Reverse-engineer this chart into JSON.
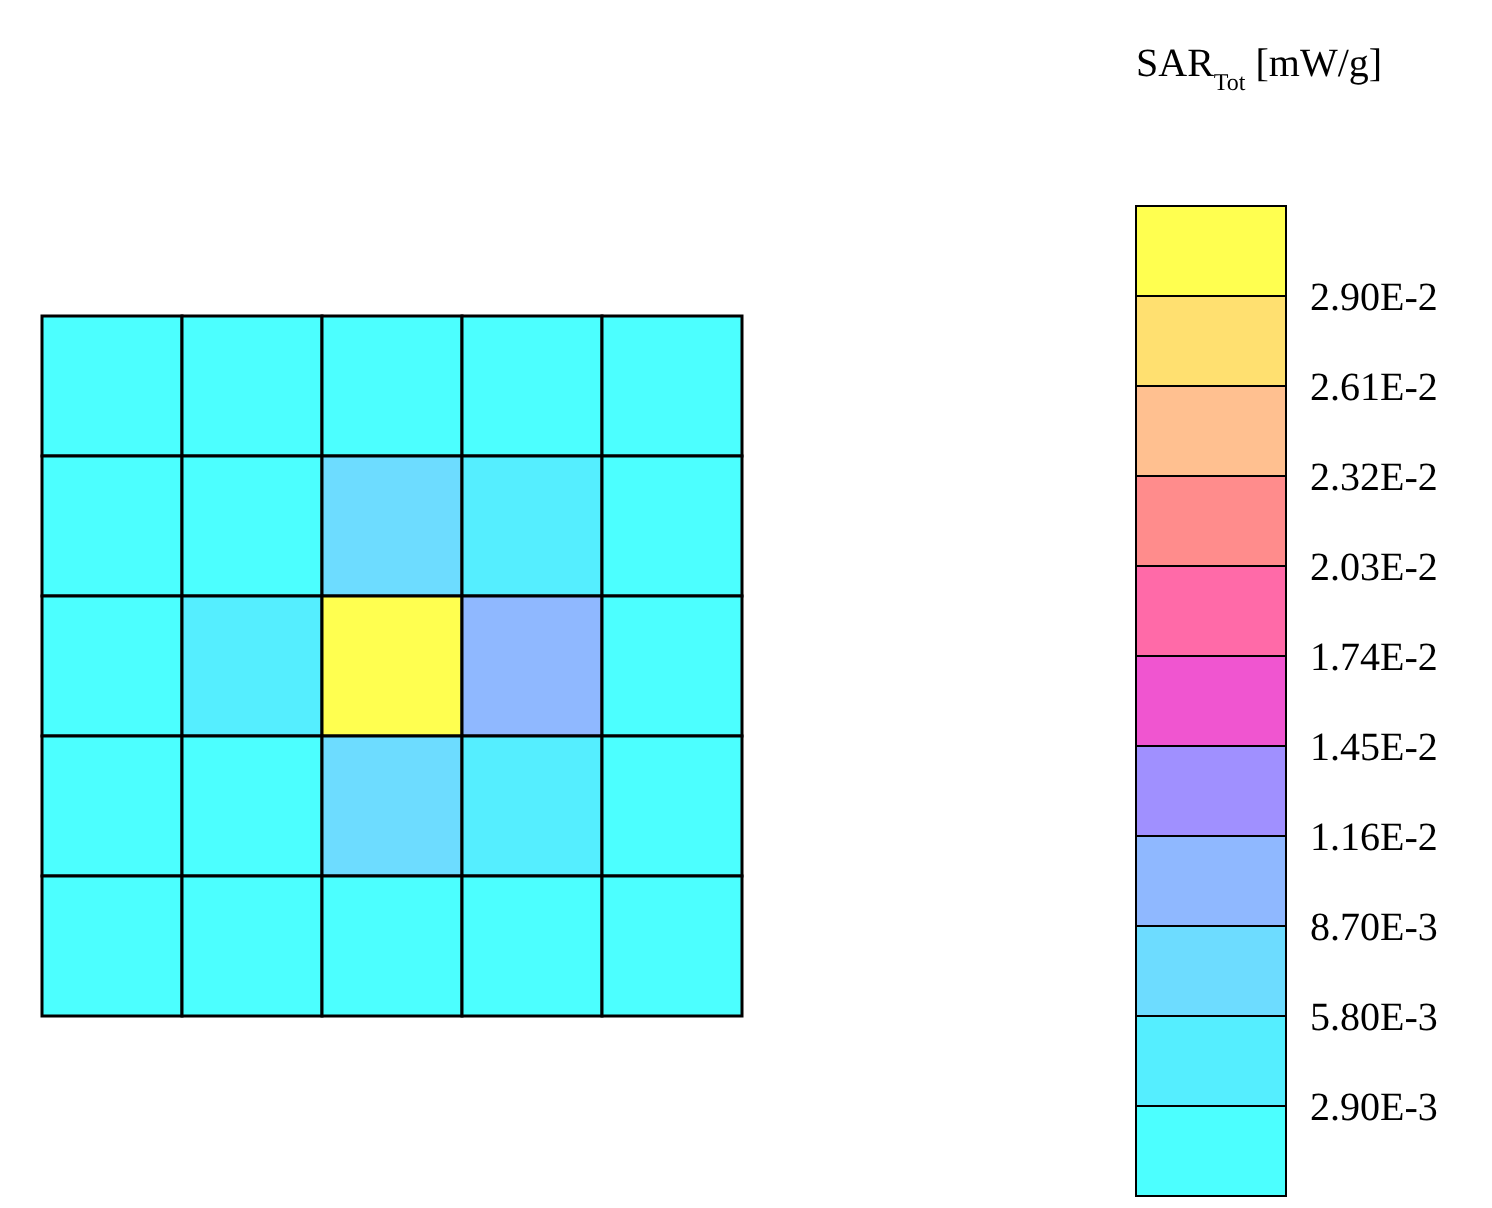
{
  "chart_data": {
    "type": "heatmap",
    "clabel": "SAR$_{Tot}$ [mW/g]",
    "categories": [
      null,
      null,
      null,
      null,
      null
    ],
    "y_categories": [
      null,
      null,
      null,
      null,
      null
    ],
    "cells": [
      [
        0.001,
        0.0012,
        0.0028,
        0.0012,
        0.001
      ],
      [
        0.0012,
        0.0025,
        0.007,
        0.003,
        0.0012
      ],
      [
        0.0015,
        0.005,
        0.03,
        0.011,
        0.002
      ],
      [
        0.0012,
        0.0025,
        0.007,
        0.0035,
        0.0012
      ],
      [
        0.001,
        0.0012,
        0.0028,
        0.0012,
        0.001
      ]
    ],
    "clim": [
      0,
      0.0319
    ],
    "cticks": [
      {
        "value": 0.0029,
        "label": "2.90E-3"
      },
      {
        "value": 0.0058,
        "label": "5.80E-3"
      },
      {
        "value": 0.0087,
        "label": "8.70E-3"
      },
      {
        "value": 0.0116,
        "label": "1.16E-2"
      },
      {
        "value": 0.0145,
        "label": "1.45E-2"
      },
      {
        "value": 0.0174,
        "label": "1.74E-2"
      },
      {
        "value": 0.0203,
        "label": "2.03E-2"
      },
      {
        "value": 0.0232,
        "label": "2.32E-2"
      },
      {
        "value": 0.0261,
        "label": "2.61E-2"
      },
      {
        "value": 0.029,
        "label": "2.90E-2"
      }
    ],
    "colors": [
      "#4cffff",
      "#55eeff",
      "#6ddcff",
      "#8fb8ff",
      "#a090ff",
      "#f055d0",
      "#ff6aa8",
      "#ff8c8c",
      "#ffc090",
      "#ffe070",
      "#ffff50"
    ]
  }
}
